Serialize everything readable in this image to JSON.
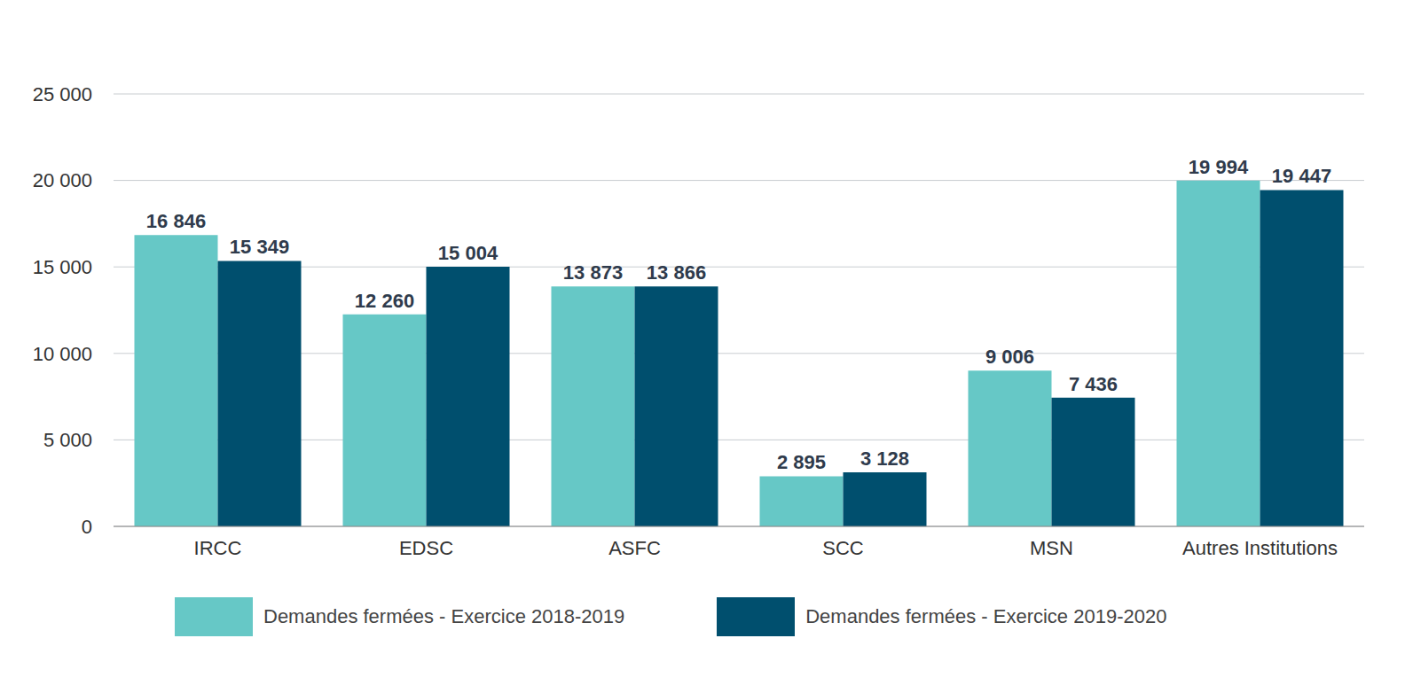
{
  "chart_data": {
    "type": "bar",
    "categories": [
      "IRCC",
      "EDSC",
      "ASFC",
      "SCC",
      "MSN",
      "Autres Institutions"
    ],
    "series": [
      {
        "name": "Demandes fermées - Exercice 2018-2019",
        "color": "#66c8c6",
        "values": [
          16846,
          12260,
          13873,
          2895,
          9006,
          19994
        ],
        "value_labels": [
          "16 846",
          "12 260",
          "13 873",
          "2 895",
          "9 006",
          "19 994"
        ]
      },
      {
        "name": "Demandes fermées - Exercice 2019-2020",
        "color": "#004f6e",
        "values": [
          15349,
          15004,
          13866,
          3128,
          7436,
          19447
        ],
        "value_labels": [
          "15 349",
          "15 004",
          "13 866",
          "3 128",
          "7 436",
          "19 447"
        ]
      }
    ],
    "ylim": [
      0,
      25000
    ],
    "yticks": [
      0,
      {
        "value": 5000,
        "label": "5 000"
      },
      {
        "value": 10000,
        "label": "10 000"
      },
      {
        "value": 15000,
        "label": "15 000"
      },
      {
        "value": 20000,
        "label": "20 000"
      },
      {
        "value": 25000,
        "label": "25 000"
      }
    ],
    "grid": true,
    "data_labels": true,
    "legend": "bottom"
  }
}
